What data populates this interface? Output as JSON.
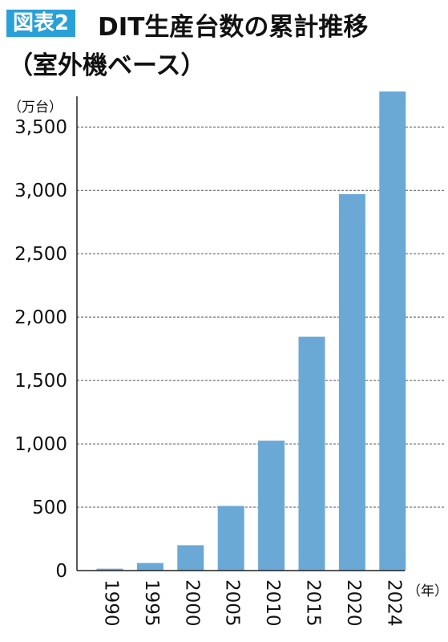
{
  "header": {
    "badge": "図表2",
    "title": "DIT生産台数の累計推移",
    "subtitle": "（室外機ベース）"
  },
  "chart_data": {
    "type": "bar",
    "title": "DIT生産台数の累計推移",
    "subtitle": "（室外機ベース）",
    "ylabel": "（万台）",
    "xlabel": "（年）",
    "categories": [
      "1990",
      "1995",
      "2000",
      "2005",
      "2010",
      "2015",
      "2020",
      "2024"
    ],
    "values": [
      15,
      60,
      200,
      510,
      1025,
      1845,
      2970,
      3780
    ],
    "ylim": [
      0,
      3780
    ],
    "yticks": [
      0,
      500,
      1000,
      1500,
      2000,
      2500,
      3000,
      3500
    ],
    "ytick_labels": [
      "0",
      "500",
      "1,000",
      "1,500",
      "2,000",
      "2,500",
      "3,000",
      "3,500"
    ],
    "grid": true,
    "colors": {
      "bar": "#6aa9d6",
      "grid": "#555555",
      "axis": "#222222",
      "badge": "#2aa0d8"
    }
  }
}
